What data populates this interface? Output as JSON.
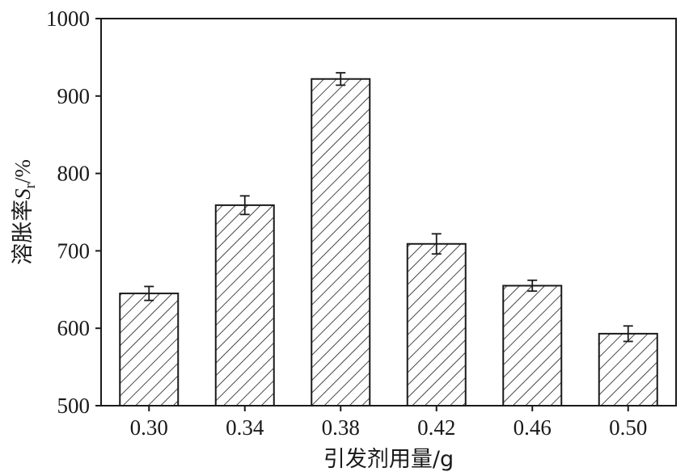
{
  "chart_data": {
    "type": "bar",
    "categories": [
      "0.30",
      "0.34",
      "0.38",
      "0.42",
      "0.46",
      "0.50"
    ],
    "values": [
      645,
      759,
      922,
      709,
      655,
      593
    ],
    "errors": [
      9,
      12,
      8,
      13,
      7,
      10
    ],
    "xlabel": "引发剂用量/g",
    "ylabel_main": "溶胀率",
    "ylabel_symbol": "S",
    "ylabel_subscript": "r",
    "ylabel_unit": "/%",
    "ylim": [
      500,
      1000
    ],
    "yticks": [
      "500",
      "600",
      "700",
      "800",
      "900",
      "1000"
    ],
    "bar_fill": "hatched",
    "bar_color": "#1a1a1a",
    "grid": false,
    "legend": "none"
  }
}
